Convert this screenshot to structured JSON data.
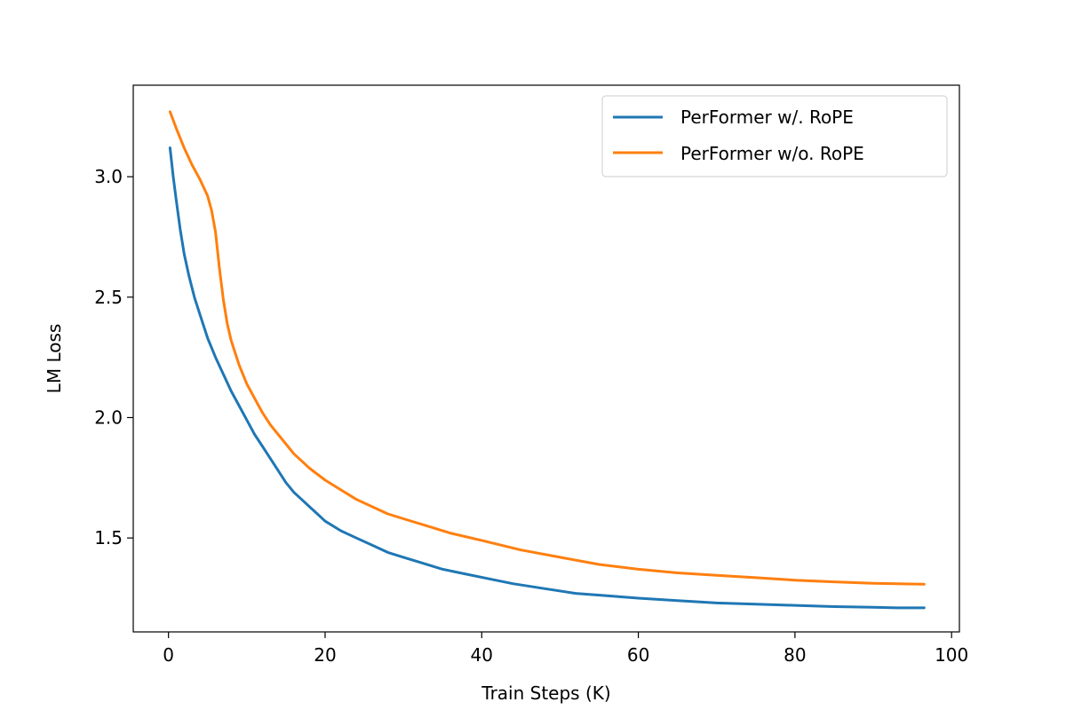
{
  "chart_data": {
    "type": "line",
    "title": "",
    "xlabel": "Train Steps (K)",
    "ylabel": "LM Loss",
    "xlim": [
      -4.5,
      101
    ],
    "ylim": [
      1.11,
      3.38
    ],
    "xticks": [
      0,
      20,
      40,
      60,
      80,
      100
    ],
    "yticks": [
      1.5,
      2.0,
      2.5,
      3.0
    ],
    "xtick_labels": [
      "0",
      "20",
      "40",
      "60",
      "80",
      "100"
    ],
    "ytick_labels": [
      "1.5",
      "2.0",
      "2.5",
      "3.0"
    ],
    "grid": false,
    "legend_position": "top-right",
    "series": [
      {
        "name": "PerFormer w/. RoPE",
        "color": "#1f77b4",
        "x": [
          0.2,
          0.6,
          1.0,
          1.5,
          2.0,
          2.6,
          3.3,
          4.0,
          5.0,
          6.0,
          7.0,
          8.0,
          9.0,
          10.0,
          11.0,
          12.0,
          13.0,
          14.0,
          15.0,
          16.0,
          17.0,
          18.0,
          19.0,
          20.0,
          22.0,
          24.0,
          26.0,
          28.0,
          30.0,
          32.0,
          35.0,
          38.0,
          41.0,
          44.0,
          48.0,
          52.0,
          56.0,
          60.0,
          65.0,
          70.0,
          75.0,
          80.0,
          85.0,
          90.0,
          93.0,
          96.5
        ],
        "y": [
          3.12,
          3.0,
          2.9,
          2.78,
          2.68,
          2.59,
          2.5,
          2.43,
          2.33,
          2.25,
          2.18,
          2.11,
          2.05,
          1.99,
          1.93,
          1.88,
          1.83,
          1.78,
          1.73,
          1.69,
          1.66,
          1.63,
          1.6,
          1.57,
          1.53,
          1.5,
          1.47,
          1.44,
          1.42,
          1.4,
          1.37,
          1.35,
          1.33,
          1.31,
          1.29,
          1.27,
          1.26,
          1.25,
          1.24,
          1.23,
          1.225,
          1.22,
          1.215,
          1.212,
          1.21,
          1.21
        ]
      },
      {
        "name": "PerFormer w/o. RoPE",
        "color": "#ff7f0e",
        "x": [
          0.2,
          1.0,
          2.0,
          3.0,
          4.0,
          5.0,
          5.5,
          6.0,
          6.5,
          7.0,
          7.5,
          8.0,
          9.0,
          10.0,
          11.0,
          12.0,
          13.0,
          14.0,
          15.0,
          16.0,
          17.0,
          18.0,
          20.0,
          22.0,
          24.0,
          26.0,
          28.0,
          30.0,
          33.0,
          36.0,
          40.0,
          45.0,
          50.0,
          55.0,
          60.0,
          65.0,
          70.0,
          75.0,
          80.0,
          85.0,
          90.0,
          96.5
        ],
        "y": [
          3.27,
          3.2,
          3.12,
          3.05,
          2.99,
          2.92,
          2.86,
          2.77,
          2.62,
          2.49,
          2.39,
          2.32,
          2.22,
          2.14,
          2.08,
          2.02,
          1.97,
          1.93,
          1.89,
          1.85,
          1.82,
          1.79,
          1.74,
          1.7,
          1.66,
          1.63,
          1.6,
          1.58,
          1.55,
          1.52,
          1.49,
          1.45,
          1.42,
          1.39,
          1.37,
          1.355,
          1.345,
          1.335,
          1.325,
          1.318,
          1.312,
          1.308
        ]
      }
    ]
  }
}
